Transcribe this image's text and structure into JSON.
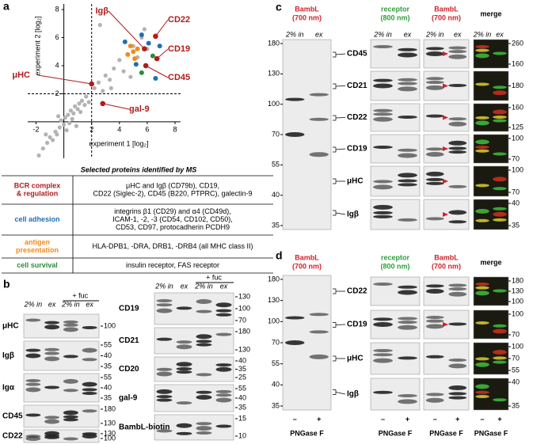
{
  "chart_data": {
    "type": "scatter",
    "panel_label": "a",
    "x_label": "experiment 1 [log₂]",
    "y_label": "experiment 2 [log₂]",
    "xlim": [
      -2.6,
      8.4
    ],
    "ylim": [
      -2.6,
      8.4
    ],
    "xticks": [
      -2,
      2,
      4,
      6,
      8
    ],
    "yticks": [
      2,
      4,
      6,
      8
    ],
    "xline": 2,
    "yline": 2,
    "series": [
      {
        "color": "#b3b3b3",
        "x": [
          -1.8,
          -1.5,
          -1.2,
          -1,
          -0.8,
          -0.6,
          -0.5,
          -0.3,
          -0.2,
          0,
          0.1,
          0.3,
          0.4,
          0.5,
          0.7,
          0.8,
          1,
          1.1,
          1.3,
          1.5,
          1.6,
          1.8,
          2.2,
          2.5,
          2.8,
          3,
          3.3,
          3.6,
          4,
          4.3,
          4.6,
          5,
          5.3,
          5.6,
          6,
          0.2,
          -0.4,
          0.6,
          1.2,
          -1.3,
          0.9,
          3.4,
          4.8,
          5.8,
          2.6
        ],
        "values": [
          -2.4,
          -1.9,
          -1.5,
          -1.1,
          -1.3,
          -0.7,
          -0.9,
          -0.4,
          0.1,
          -0.2,
          0.3,
          0.5,
          -0.1,
          0.8,
          0.6,
          1.1,
          0.9,
          1.3,
          1.5,
          1.2,
          1.8,
          1.4,
          2.4,
          2.8,
          2.2,
          3.3,
          3.0,
          3.8,
          4.4,
          3.6,
          4.8,
          5.4,
          4.6,
          6.0,
          5.2,
          -0.6,
          0.4,
          0.2,
          0.7,
          -0.9,
          -0.3,
          2.4,
          3.2,
          6.6,
          6.9
        ]
      },
      {
        "color": "#1f6fb5",
        "x": [
          4.4,
          5.6,
          6.1,
          6.9,
          5.2,
          6.6
        ],
        "values": [
          5.7,
          6.2,
          5.6,
          5.4,
          4.1,
          3.1
        ]
      },
      {
        "color": "#f08a1c",
        "x": [
          4.8,
          5.0,
          5.3,
          4.6,
          5.1
        ],
        "values": [
          5.4,
          5.0,
          5.2,
          4.8,
          4.5
        ]
      },
      {
        "color": "#2e8b3a",
        "x": [
          6.4,
          5.6
        ],
        "values": [
          4.7,
          3.5
        ]
      }
    ],
    "annotation_color": "#b01c1c",
    "annotations": [
      {
        "text": "Igβ",
        "x": 5.8,
        "y": 5.2
      },
      {
        "text": "CD22",
        "x": 6.6,
        "y": 6.1
      },
      {
        "text": "CD19",
        "x": 6.7,
        "y": 4.5
      },
      {
        "text": "CD45",
        "x": 5.9,
        "y": 4.0
      },
      {
        "text": "μHC",
        "x": 2.0,
        "y": 2.7
      },
      {
        "text": "gal-9",
        "x": 2.8,
        "y": 1.3
      }
    ]
  },
  "table": {
    "title": "Selected proteins identified by MS",
    "rows": [
      {
        "category": [
          "BCR complex",
          "& regulation"
        ],
        "color": "#b01c1c",
        "text": [
          "μHC and Igβ (CD79b), CD19,",
          "CD22 (Siglec-2), CD45 (B220, PTPRC), galectin-9"
        ]
      },
      {
        "category": [
          "cell adhesion"
        ],
        "color": "#1f6fb5",
        "text": [
          "integrins β1 (CD29) and α4 (CD49d),",
          "ICAM-1, -2, -3 (CD54, CD102, CD50),",
          "CD53, CD97, protocadherin PCDH9"
        ]
      },
      {
        "category": [
          "antigen",
          "presentation"
        ],
        "color": "#f08a1c",
        "text": [
          "HLA-DPB1, -DRA, DRB1, -DRB4 (all MHC class II)"
        ]
      },
      {
        "category": [
          "cell survival"
        ],
        "color": "#2e8b3a",
        "text": [
          "insulin receptor, FAS receptor"
        ]
      }
    ]
  },
  "panel_b": {
    "label": "b",
    "fuc": "+ fuc",
    "lanes": [
      "2% in",
      "ex"
    ],
    "left": [
      {
        "name": "μHC",
        "markers": [
          100
        ]
      },
      {
        "name": "Igβ",
        "markers": [
          55,
          40,
          35
        ]
      },
      {
        "name": "Igα",
        "markers": [
          55,
          40,
          35
        ]
      },
      {
        "name": "CD45",
        "markers": [
          180,
          130
        ]
      },
      {
        "name": "CD22",
        "markers": [
          130,
          100
        ]
      }
    ],
    "right": [
      {
        "name": "CD19",
        "markers": [
          130,
          100,
          70
        ]
      },
      {
        "name": "CD21",
        "markers": [
          180,
          130
        ]
      },
      {
        "name": "CD20",
        "markers": [
          40,
          35,
          25
        ]
      },
      {
        "name": "gal-9",
        "markers": [
          55,
          40,
          35
        ]
      },
      {
        "name": "BambL-biotin",
        "markers": [
          15,
          10
        ]
      }
    ]
  },
  "panel_c": {
    "label": "c",
    "headers": [
      {
        "text": [
          "BambL",
          "(700 nm)"
        ],
        "color": "#d0202a"
      },
      {
        "text": [
          "receptor",
          "(800 nm)"
        ],
        "color": "#2e9e3a"
      },
      {
        "text": [
          "BambL",
          "(700 nm)"
        ],
        "color": "#d0202a"
      },
      {
        "text": [
          "merge"
        ],
        "color": "#000000"
      }
    ],
    "lanes": [
      "2% in",
      "ex"
    ],
    "markers": [
      180,
      130,
      100,
      70,
      55,
      40,
      35
    ],
    "rows": [
      {
        "name": "CD45",
        "markers": [
          260,
          160
        ]
      },
      {
        "name": "CD21",
        "markers": [
          180
        ]
      },
      {
        "name": "CD22",
        "markers": [
          160,
          125
        ]
      },
      {
        "name": "CD19",
        "markers": [
          100,
          70
        ]
      },
      {
        "name": "μHC",
        "markers": [
          100,
          70
        ]
      },
      {
        "name": "Igβ",
        "markers": [
          40,
          35
        ]
      }
    ]
  },
  "panel_d": {
    "label": "d",
    "headers": [
      {
        "text": [
          "BambL",
          "(700 nm)"
        ],
        "color": "#d0202a"
      },
      {
        "text": [
          "receptor",
          "(800 nm)"
        ],
        "color": "#2e9e3a"
      },
      {
        "text": [
          "BambL",
          "(700 nm)"
        ],
        "color": "#d0202a"
      },
      {
        "text": [
          "merge"
        ],
        "color": "#000000"
      }
    ],
    "markers": [
      180,
      130,
      100,
      70,
      55,
      40,
      35
    ],
    "minus": "–",
    "plus": "+",
    "treatment": "PNGase F",
    "rows": [
      {
        "name": "CD22",
        "markers": [
          180,
          130,
          100
        ]
      },
      {
        "name": "CD19",
        "markers": [
          100,
          70
        ]
      },
      {
        "name": "μHC",
        "markers": [
          100,
          70,
          55
        ]
      },
      {
        "name": "Igβ",
        "markers": [
          40,
          35
        ]
      }
    ]
  }
}
